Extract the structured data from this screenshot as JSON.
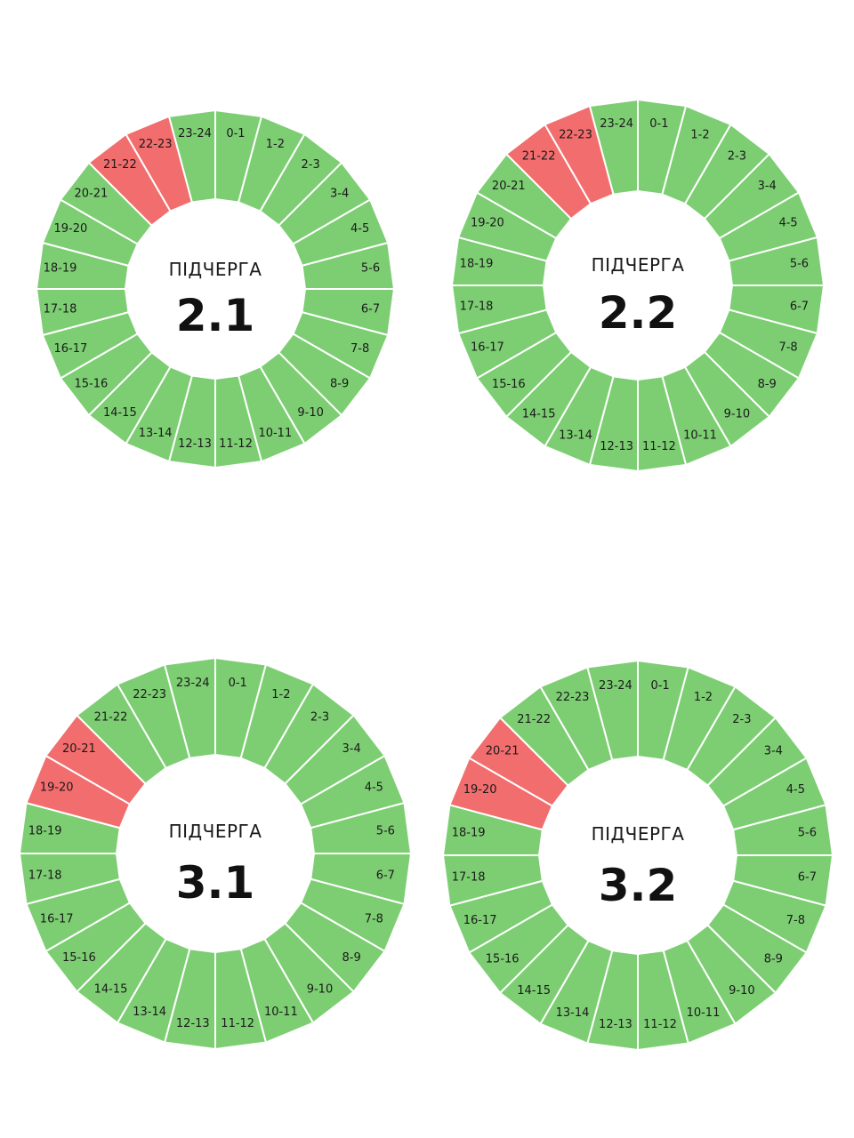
{
  "colors": {
    "on": "#7dce73",
    "off": "#f26d6d",
    "separator": "#ffffff",
    "hole": "#ffffff"
  },
  "center_title": "ПІДЧЕРГА",
  "hour_labels": [
    "0-1",
    "1-2",
    "2-3",
    "3-4",
    "4-5",
    "5-6",
    "6-7",
    "7-8",
    "8-9",
    "9-10",
    "10-11",
    "11-12",
    "12-13",
    "13-14",
    "14-15",
    "15-16",
    "16-17",
    "17-18",
    "18-19",
    "19-20",
    "20-21",
    "21-22",
    "22-23",
    "23-24"
  ],
  "queues": [
    {
      "number": "2.1",
      "off_hours": [
        "21-22",
        "22-23"
      ]
    },
    {
      "number": "2.2",
      "off_hours": [
        "21-22",
        "22-23"
      ]
    },
    {
      "number": "3.1",
      "off_hours": [
        "19-20",
        "20-21"
      ]
    },
    {
      "number": "3.2",
      "off_hours": [
        "19-20",
        "20-21"
      ]
    }
  ]
}
